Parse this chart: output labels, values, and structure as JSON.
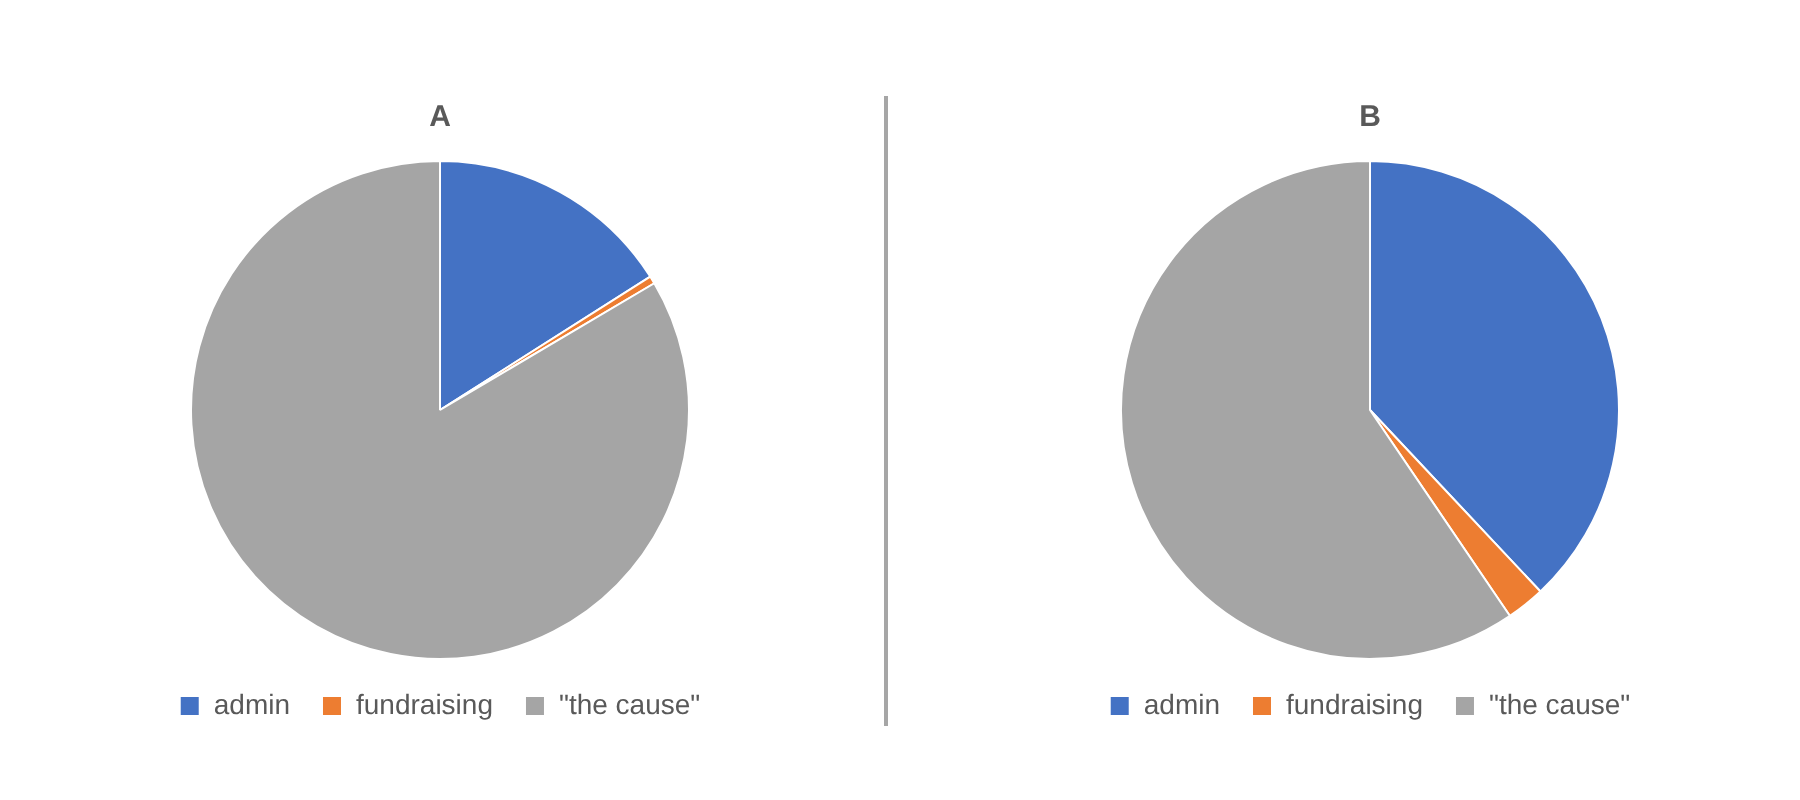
{
  "chart_data": [
    {
      "type": "pie",
      "title": "A",
      "categories": [
        "admin",
        "fundraising",
        "\"the cause\""
      ],
      "values": [
        16,
        0.5,
        83.5
      ],
      "colors": [
        "#4472c4",
        "#ed7d31",
        "#a5a5a5"
      ],
      "legend": "bottom"
    },
    {
      "type": "pie",
      "title": "B",
      "categories": [
        "admin",
        "fundraising",
        "\"the cause\""
      ],
      "values": [
        38,
        2.5,
        59.5
      ],
      "colors": [
        "#4472c4",
        "#ed7d31",
        "#a5a5a5"
      ],
      "legend": "bottom"
    }
  ]
}
